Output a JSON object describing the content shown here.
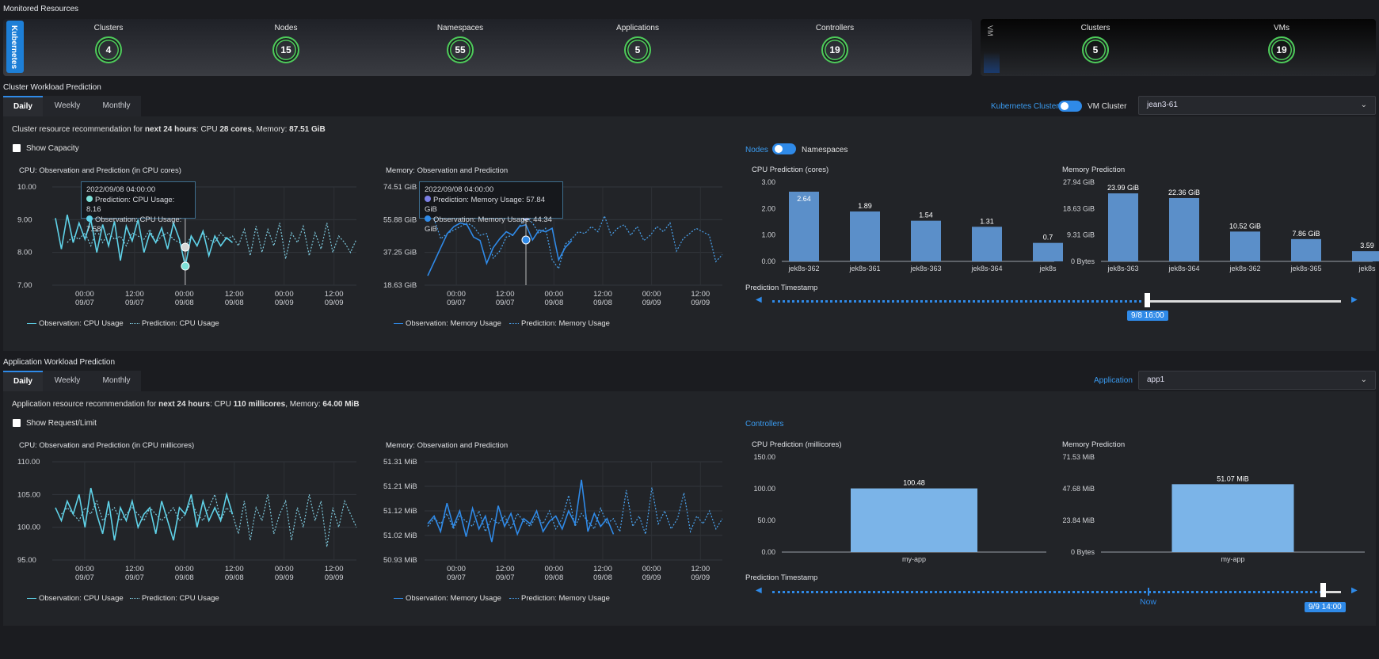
{
  "monitored": {
    "title": "Monitored Resources",
    "k8s_tab": "Kubernetes",
    "vm_tab": "VM",
    "k8s_metrics": [
      {
        "label": "Clusters",
        "value": "4"
      },
      {
        "label": "Nodes",
        "value": "15"
      },
      {
        "label": "Namespaces",
        "value": "55"
      },
      {
        "label": "Applications",
        "value": "5"
      },
      {
        "label": "Controllers",
        "value": "19"
      }
    ],
    "vm_metrics": [
      {
        "label": "Clusters",
        "value": "5"
      },
      {
        "label": "VMs",
        "value": "19"
      }
    ]
  },
  "cluster": {
    "title": "Cluster Workload Prediction",
    "tabs": [
      "Daily",
      "Weekly",
      "Monthly"
    ],
    "kube_label": "Kubernetes Cluster",
    "vm_label": "VM Cluster",
    "select": "jean3-61",
    "rec_prefix": "Cluster resource recommendation for ",
    "rec_period": "next 24 hours",
    "rec_cpu_prefix": ": CPU ",
    "rec_cpu": "28 cores",
    "rec_mem_prefix": ", Memory: ",
    "rec_mem": "87.51 GiB",
    "show_capacity": "Show Capacity",
    "nodes_label": "Nodes",
    "namespaces_label": "Namespaces",
    "cpu_chart_title": "CPU: Observation and Prediction (in CPU cores)",
    "mem_chart_title": "Memory: Observation and Prediction",
    "cpu_pred_title": "CPU Prediction (cores)",
    "mem_pred_title": "Memory Prediction",
    "timestamp_title": "Prediction Timestamp",
    "timestamp_value": "9/8 16:00",
    "cpu_tooltip": {
      "time": "2022/09/08 04:00:00",
      "pred": "Prediction: CPU Usage: 8.16",
      "obs": "Observation: CPU Usage: 7.58"
    },
    "mem_tooltip": {
      "time": "2022/09/08 04:00:00",
      "pred": "Prediction: Memory Usage: 57.84 GiB",
      "obs": "Observation: Memory Usage: 44.34 GiB"
    },
    "legend_cpu_obs": "Observation: CPU Usage",
    "legend_cpu_pred": "Prediction: CPU Usage",
    "legend_mem_obs": "Observation: Memory Usage",
    "legend_mem_pred": "Prediction: Memory Usage"
  },
  "application": {
    "title": "Application Workload Prediction",
    "tabs": [
      "Daily",
      "Weekly",
      "Monthly"
    ],
    "app_label": "Application",
    "select": "app1",
    "rec_prefix": "Application resource recommendation for ",
    "rec_period": "next 24 hours",
    "rec_cpu_prefix": ": CPU ",
    "rec_cpu": "110 millicores",
    "rec_mem_prefix": ", Memory: ",
    "rec_mem": "64.00 MiB",
    "show_request": "Show Request/Limit",
    "controllers_label": "Controllers",
    "cpu_chart_title": "CPU: Observation and Prediction (in CPU millicores)",
    "mem_chart_title": "Memory: Observation and Prediction",
    "cpu_pred_title": "CPU Prediction (millicores)",
    "mem_pred_title": "Memory Prediction",
    "timestamp_title": "Prediction Timestamp",
    "timestamp_now": "Now",
    "timestamp_value": "9/9 14:00",
    "legend_cpu_obs": "Observation: CPU Usage",
    "legend_cpu_pred": "Prediction: CPU Usage",
    "legend_mem_obs": "Observation: Memory Usage",
    "legend_mem_pred": "Prediction: Memory Usage"
  },
  "chart_data": [
    {
      "id": "c_cpu",
      "type": "line",
      "title": "CPU: Observation and Prediction (in CPU cores)",
      "yticks": [
        "10.00",
        "9.00",
        "8.00",
        "7.00"
      ],
      "ylim": [
        7,
        10
      ],
      "xticks": [
        [
          "00:00",
          "09/07"
        ],
        [
          "12:00",
          "09/07"
        ],
        [
          "00:00",
          "09/08"
        ],
        [
          "12:00",
          "09/08"
        ],
        [
          "00:00",
          "09/09"
        ],
        [
          "12:00",
          "09/09"
        ]
      ],
      "series": [
        {
          "name": "Observation: CPU Usage",
          "values": [
            9.05,
            8.1,
            9.15,
            8.3,
            8.9,
            8.4,
            9.0,
            8.0,
            8.85,
            8.2,
            8.95,
            7.75,
            8.8,
            8.35,
            9.0,
            8.0,
            8.6,
            8.3,
            8.75,
            8.1,
            8.9,
            8.4,
            7.58,
            8.5,
            8.2,
            8.65,
            7.9,
            8.5,
            8.2,
            8.45,
            8.3
          ]
        },
        {
          "name": "Prediction: CPU Usage",
          "values": [
            null,
            null,
            8.3,
            8.5,
            8.4,
            8.6,
            8.2,
            8.7,
            8.3,
            8.6,
            8.4,
            8.5,
            8.2,
            8.6,
            8.5,
            8.4,
            8.7,
            8.3,
            8.5,
            8.6,
            8.4,
            8.3,
            8.16,
            8.5,
            8.2,
            8.6,
            8.4,
            8.3,
            8.6,
            8.4,
            8.5,
            8.2,
            8.7,
            7.9,
            8.8,
            8.0,
            8.7,
            8.2,
            8.9,
            7.8,
            8.6,
            8.3,
            8.8,
            7.9,
            8.6,
            8.1,
            8.9,
            8.0,
            8.5,
            8.3,
            8.0,
            8.4
          ]
        }
      ]
    },
    {
      "id": "c_mem",
      "type": "line",
      "title": "Memory: Observation and Prediction",
      "yticks": [
        "74.51 GiB",
        "55.88 GiB",
        "37.25 GiB",
        "18.63 GiB"
      ],
      "ylim": [
        18.63,
        74.51
      ],
      "xticks": [
        [
          "00:00",
          "09/07"
        ],
        [
          "12:00",
          "09/07"
        ],
        [
          "00:00",
          "09/08"
        ],
        [
          "12:00",
          "09/08"
        ],
        [
          "00:00",
          "09/09"
        ],
        [
          "12:00",
          "09/09"
        ]
      ],
      "series": [
        {
          "name": "Observation: Memory Usage",
          "values": [
            24,
            32,
            40,
            48,
            52,
            54,
            53,
            46,
            44,
            31,
            40,
            45,
            49,
            47,
            52,
            53,
            44.34,
            50,
            49,
            51,
            33,
            40,
            44
          ]
        },
        {
          "name": "Prediction: Memory Usage",
          "values": [
            74,
            56,
            45,
            48,
            50,
            52,
            54,
            52,
            47,
            48,
            34,
            38,
            46,
            47,
            52,
            57.84,
            54,
            48,
            51,
            33,
            28,
            42,
            45,
            49,
            48,
            52,
            49,
            58,
            47,
            51,
            53,
            47,
            52,
            44,
            47,
            52,
            49,
            54,
            38,
            45,
            48,
            51,
            49,
            47,
            32,
            36
          ]
        }
      ]
    },
    {
      "id": "c_cpu_bar",
      "type": "bar",
      "title": "CPU Prediction (cores)",
      "yticks": [
        "3.00",
        "2.00",
        "1.00",
        "0.00"
      ],
      "ylim": [
        0,
        3
      ],
      "categories": [
        "jek8s-362",
        "jek8s-361",
        "jek8s-363",
        "jek8s-364",
        "jek8s"
      ],
      "values": [
        2.64,
        1.89,
        1.54,
        1.31,
        0.7
      ],
      "labels": [
        "2.64",
        "1.89",
        "1.54",
        "1.31",
        "0.7"
      ]
    },
    {
      "id": "c_mem_bar",
      "type": "bar",
      "title": "Memory Prediction",
      "yticks": [
        "27.94 GiB",
        "18.63 GiB",
        "9.31 GiB",
        "0 Bytes"
      ],
      "ylim": [
        0,
        27.94
      ],
      "categories": [
        "jek8s-363",
        "jek8s-364",
        "jek8s-362",
        "jek8s-365",
        "jek8s"
      ],
      "values": [
        23.99,
        22.36,
        10.52,
        7.86,
        3.59
      ],
      "labels": [
        "23.99 GiB",
        "22.36 GiB",
        "10.52 GiB",
        "7.86 GiB",
        "3.59"
      ]
    },
    {
      "id": "a_cpu",
      "type": "line",
      "title": "CPU: Observation and Prediction (in CPU millicores)",
      "yticks": [
        "110.00",
        "105.00",
        "100.00",
        "95.00"
      ],
      "ylim": [
        95,
        110
      ],
      "xticks": [
        [
          "00:00",
          "09/07"
        ],
        [
          "12:00",
          "09/07"
        ],
        [
          "00:00",
          "09/08"
        ],
        [
          "12:00",
          "09/08"
        ],
        [
          "00:00",
          "09/09"
        ],
        [
          "12:00",
          "09/09"
        ]
      ],
      "series": [
        {
          "name": "Observation: CPU Usage",
          "values": [
            103,
            101,
            104,
            102,
            105,
            100,
            106,
            102,
            99,
            104,
            98,
            103,
            101,
            104,
            100,
            102,
            103,
            99,
            104,
            101,
            98,
            103,
            102,
            105,
            100,
            104,
            101,
            103,
            101,
            105,
            102
          ]
        },
        {
          "name": "Prediction: CPU Usage",
          "values": [
            null,
            102,
            103,
            102,
            101,
            103,
            102,
            104,
            101,
            102,
            103,
            101,
            102,
            103,
            102,
            101,
            103,
            102,
            101,
            102,
            103,
            101,
            102,
            104,
            102,
            101,
            103,
            105,
            101,
            103,
            102,
            99,
            104,
            98,
            103,
            101,
            105,
            99,
            102,
            104,
            98,
            103,
            100,
            105,
            101,
            104,
            97,
            103,
            100,
            104,
            102,
            100
          ]
        }
      ]
    },
    {
      "id": "a_mem",
      "type": "line",
      "title": "Memory: Observation and Prediction",
      "yticks": [
        "51.31 MiB",
        "51.21 MiB",
        "51.12 MiB",
        "51.02 MiB",
        "50.93 MiB"
      ],
      "ylim": [
        50.93,
        51.31
      ],
      "xticks": [
        [
          "00:00",
          "09/07"
        ],
        [
          "12:00",
          "09/07"
        ],
        [
          "00:00",
          "09/08"
        ],
        [
          "12:00",
          "09/08"
        ],
        [
          "00:00",
          "09/09"
        ],
        [
          "12:00",
          "09/09"
        ]
      ],
      "series": [
        {
          "name": "Observation: Memory Usage",
          "values": [
            51.07,
            51.1,
            51.04,
            51.15,
            51.06,
            51.12,
            51.02,
            51.13,
            51.05,
            51.1,
            51.0,
            51.14,
            51.06,
            51.11,
            51.03,
            51.09,
            51.07,
            51.12,
            51.04,
            51.08,
            51.1,
            51.05,
            51.12,
            51.07,
            51.24,
            51.04,
            51.11,
            51.06,
            51.09,
            51.03
          ]
        },
        {
          "name": "Prediction: Memory Usage",
          "values": [
            51.06,
            51.09,
            51.07,
            51.11,
            51.05,
            51.1,
            51.08,
            51.06,
            51.12,
            51.04,
            51.09,
            51.07,
            51.1,
            51.05,
            51.11,
            51.08,
            51.06,
            51.1,
            51.07,
            51.12,
            51.05,
            51.09,
            51.18,
            51.06,
            51.11,
            51.08,
            51.05,
            51.13,
            51.07,
            51.09,
            51.04,
            51.2,
            51.06,
            51.1,
            51.03,
            51.21,
            51.07,
            51.12,
            51.05,
            51.09,
            51.19,
            51.04,
            51.1,
            51.07,
            51.12,
            51.05,
            51.09
          ]
        }
      ]
    },
    {
      "id": "a_cpu_bar",
      "type": "bar",
      "title": "CPU Prediction (millicores)",
      "yticks": [
        "150.00",
        "100.00",
        "50.00",
        "0.00"
      ],
      "ylim": [
        0,
        150
      ],
      "categories": [
        "my-app"
      ],
      "values": [
        100.48
      ],
      "labels": [
        "100.48"
      ]
    },
    {
      "id": "a_mem_bar",
      "type": "bar",
      "title": "Memory Prediction",
      "yticks": [
        "71.53 MiB",
        "47.68 MiB",
        "23.84 MiB",
        "0 Bytes"
      ],
      "ylim": [
        0,
        71.53
      ],
      "categories": [
        "my-app"
      ],
      "values": [
        51.07
      ],
      "labels": [
        "51.07 MiB"
      ]
    }
  ],
  "colors": {
    "obs": "#5fd2e8",
    "pred": "#7ec9dd",
    "mem_obs": "#2f8ae8",
    "mem_pred": "#4aa3ef",
    "bar": "#5b8fc9",
    "bar_app": "#7bb4e8",
    "accent": "#2f8ae8",
    "ring": "#4ecb5a"
  }
}
